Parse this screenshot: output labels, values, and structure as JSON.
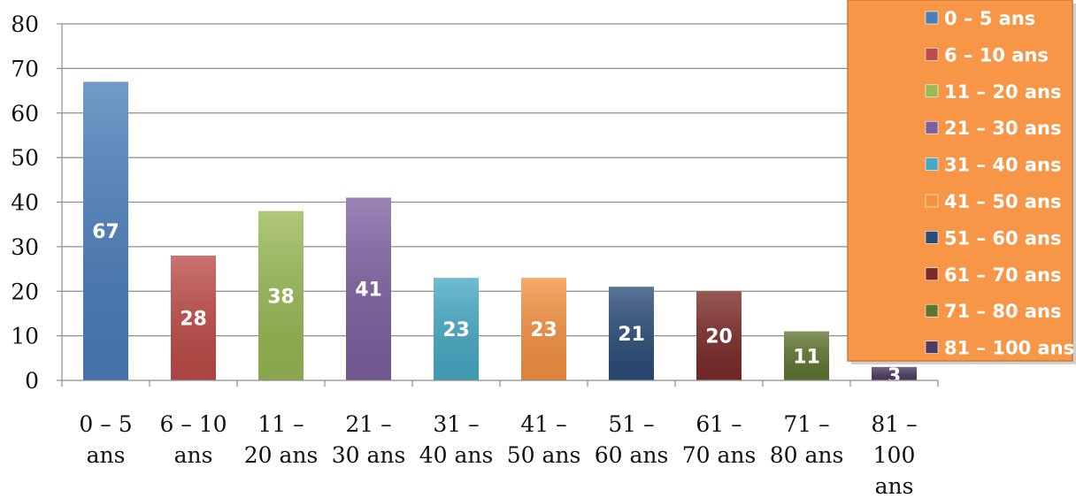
{
  "chart_data": {
    "type": "bar",
    "categories": [
      "0 – 5 ans",
      "6 – 10 ans",
      "11 – 20 ans",
      "21 – 30 ans",
      "31 – 40 ans",
      "41 – 50 ans",
      "51 – 60 ans",
      "61 – 70 ans",
      "71 – 80 ans",
      "81 – 100 ans"
    ],
    "category_label_lines": [
      [
        "0 – 5",
        "ans"
      ],
      [
        "6 – 10",
        "ans"
      ],
      [
        "11 –",
        "20 ans"
      ],
      [
        "21 –",
        "30 ans"
      ],
      [
        "31 –",
        "40 ans"
      ],
      [
        "41 –",
        "50 ans"
      ],
      [
        "51 –",
        "60 ans"
      ],
      [
        "61 –",
        "70 ans"
      ],
      [
        "71 –",
        "80 ans"
      ],
      [
        "81 –",
        "100",
        "ans"
      ]
    ],
    "values": [
      67,
      28,
      38,
      41,
      23,
      23,
      21,
      20,
      11,
      3
    ],
    "data_labels": [
      "67",
      "28",
      "38",
      "41",
      "23",
      "23",
      "21",
      "20",
      "11",
      "3"
    ],
    "colors": [
      "#4a7ebb",
      "#be4b48",
      "#98b954",
      "#7d60a0",
      "#46aac5",
      "#f69240",
      "#2a4c79",
      "#7c2a28",
      "#5f7530",
      "#4d3b62"
    ],
    "legend": [
      "0 – 5 ans",
      "6 – 10 ans",
      "11 – 20 ans",
      "21 – 30 ans",
      "31 – 40 ans",
      "41 – 50 ans",
      "51 – 60 ans",
      "61 – 70 ans",
      "71 – 80 ans",
      "81 – 100 ans"
    ],
    "legend_placement": "top-right",
    "legend_background": "#f79646",
    "yticks": [
      "0",
      "10",
      "20",
      "30",
      "40",
      "50",
      "60",
      "70",
      "80"
    ],
    "ylim": [
      0,
      80
    ],
    "grid": true,
    "title": "",
    "xlabel": "",
    "ylabel": ""
  }
}
